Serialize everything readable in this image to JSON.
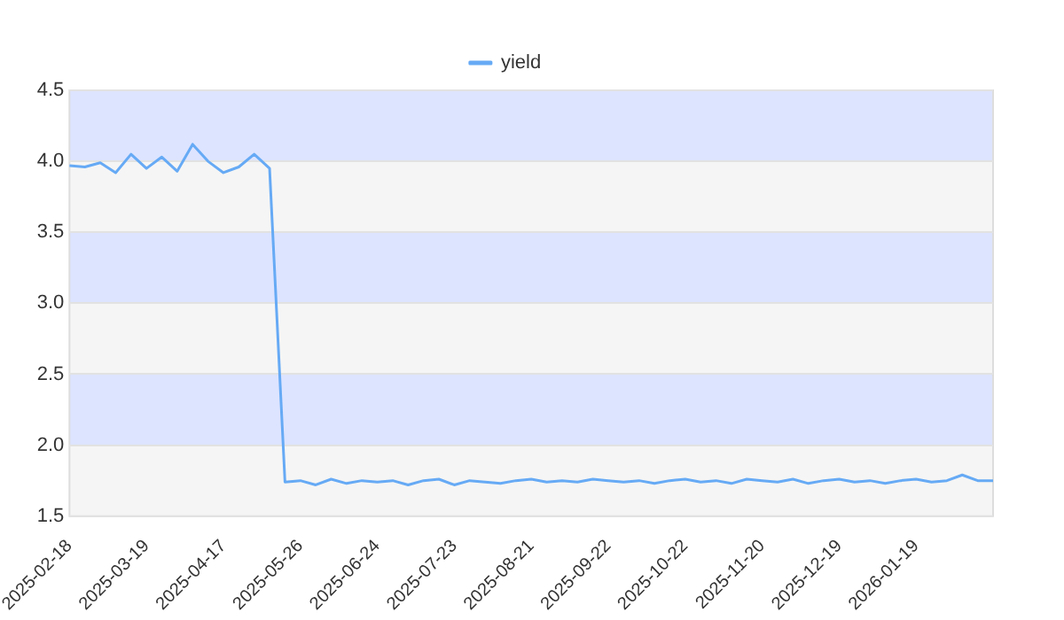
{
  "chart_data": {
    "type": "line",
    "categories": [
      "2025-02-18",
      null,
      null,
      null,
      null,
      "2025-03-19",
      null,
      null,
      null,
      null,
      "2025-04-17",
      null,
      null,
      null,
      null,
      "2025-05-26",
      null,
      null,
      null,
      null,
      "2025-06-24",
      null,
      null,
      null,
      null,
      "2025-07-23",
      null,
      null,
      null,
      null,
      "2025-08-21",
      null,
      null,
      null,
      null,
      "2025-09-22",
      null,
      null,
      null,
      null,
      "2025-10-22",
      null,
      null,
      null,
      null,
      "2025-11-20",
      null,
      null,
      null,
      null,
      "2025-12-19",
      null,
      null,
      null,
      null,
      "2026-01-19",
      null,
      null,
      null,
      null,
      null
    ],
    "series": [
      {
        "name": "yield",
        "color": "#66aaf5",
        "values": [
          3.97,
          3.96,
          3.99,
          3.92,
          4.05,
          3.95,
          4.03,
          3.93,
          4.12,
          4.0,
          3.92,
          3.96,
          4.05,
          3.95,
          1.74,
          1.75,
          1.72,
          1.76,
          1.73,
          1.75,
          1.74,
          1.75,
          1.72,
          1.75,
          1.76,
          1.72,
          1.75,
          1.74,
          1.73,
          1.75,
          1.76,
          1.74,
          1.75,
          1.74,
          1.76,
          1.75,
          1.74,
          1.75,
          1.73,
          1.75,
          1.76,
          1.74,
          1.75,
          1.73,
          1.76,
          1.75,
          1.74,
          1.76,
          1.73,
          1.75,
          1.76,
          1.74,
          1.75,
          1.73,
          1.75,
          1.76,
          1.74,
          1.75,
          1.79,
          1.75,
          1.75
        ]
      }
    ],
    "ylim": [
      1.5,
      4.5
    ],
    "yticks": [
      {
        "value": 1.5,
        "label": "1.5"
      },
      {
        "value": 2,
        "label": "2.0"
      },
      {
        "value": 2.5,
        "label": "2.5"
      },
      {
        "value": 3,
        "label": "3.0"
      },
      {
        "value": 3.5,
        "label": "3.5"
      },
      {
        "value": 4,
        "label": "4.0"
      },
      {
        "value": 4.5,
        "label": "4.5"
      }
    ],
    "grid": true,
    "legend": "top",
    "marker": "none",
    "line_style": "solid"
  }
}
